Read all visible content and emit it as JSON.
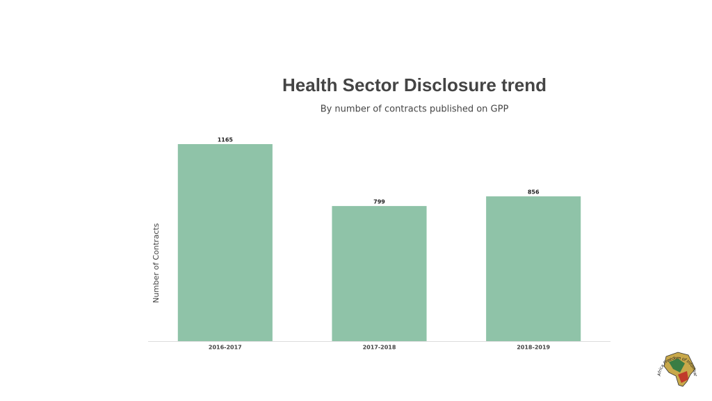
{
  "chart_data": {
    "type": "bar",
    "title": "Health Sector Disclosure trend",
    "subtitle": "By number of contracts published on GPP",
    "y_label": "Number of Contracts",
    "categories": [
      "2016-2017",
      "2017-2018",
      "2018-2019"
    ],
    "values": [
      1165,
      799,
      856
    ],
    "color": "#8fc3a8",
    "ylim": [
      0,
      1200
    ],
    "logo_text": "Africa Freedom of Information Centre"
  }
}
